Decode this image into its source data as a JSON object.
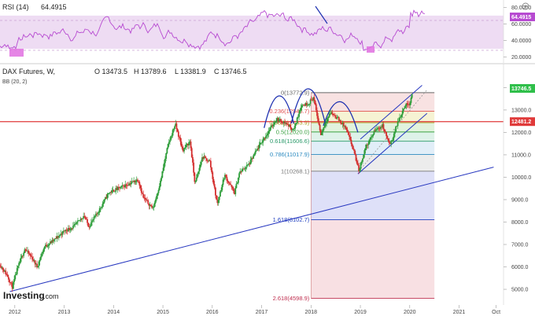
{
  "chart_data": [
    {
      "type": "line",
      "indicator": "RSI",
      "label": "RSI (14)",
      "value": "64.4915",
      "value_tag": "64.4915",
      "colors": {
        "line": "#b74ad1",
        "band": "#eedcf3",
        "tag": "#b74ad1"
      },
      "ylim": [
        15,
        85
      ],
      "y_ticks": [
        {
          "value": 80,
          "label": "80.0000"
        },
        {
          "value": 60,
          "label": "60.0000"
        },
        {
          "value": 40,
          "label": "40.0000"
        },
        {
          "value": 20,
          "label": "20.0000"
        }
      ],
      "overbought": 70,
      "oversold": 30
    },
    {
      "type": "candlestick",
      "instrument": "DAX Futures, W,",
      "ohlc_header": {
        "open": "O 13473.5",
        "high": "H 13789.6",
        "low": "L 13381.9",
        "close": "C 13746.5"
      },
      "indicator_caption": "BB (20, 2)",
      "brand": {
        "name": "Investing",
        "suffix": ".com"
      },
      "last_price_tag": "13746.5",
      "resistance_tag": "12481.2",
      "resistance_level": 12481.2,
      "ylim": [
        4300,
        14400
      ],
      "y_ticks": [
        {
          "value": 14000,
          "label": "14000.0"
        },
        {
          "value": 13000,
          "label": "13000.0"
        },
        {
          "value": 12000,
          "label": "12000.0"
        },
        {
          "value": 11000,
          "label": "11000.0"
        },
        {
          "value": 10000,
          "label": "10000.0"
        },
        {
          "value": 9000,
          "label": "9000.0"
        },
        {
          "value": 8000,
          "label": "8000.0"
        },
        {
          "value": 7000,
          "label": "7000.0"
        },
        {
          "value": 6000,
          "label": "6000.0"
        },
        {
          "value": 5000,
          "label": "5000.0"
        }
      ],
      "xlim": [
        2011.7,
        2021.9
      ],
      "x_ticks": [
        {
          "value": 2012,
          "label": "2012"
        },
        {
          "value": 2013,
          "label": "2013"
        },
        {
          "value": 2014,
          "label": "2014"
        },
        {
          "value": 2015,
          "label": "2015"
        },
        {
          "value": 2016,
          "label": "2016"
        },
        {
          "value": 2017,
          "label": "2017"
        },
        {
          "value": 2018,
          "label": "2018"
        },
        {
          "value": 2019,
          "label": "2019"
        },
        {
          "value": 2020,
          "label": "2020"
        },
        {
          "value": 2021,
          "label": "2021"
        },
        {
          "value": 2021.75,
          "label": "Oct"
        }
      ],
      "price_path": [
        [
          2011.7,
          6100
        ],
        [
          2011.85,
          5600
        ],
        [
          2011.95,
          5100
        ],
        [
          2012.05,
          5900
        ],
        [
          2012.2,
          6800
        ],
        [
          2012.35,
          6400
        ],
        [
          2012.45,
          6000
        ],
        [
          2012.6,
          6900
        ],
        [
          2012.8,
          7200
        ],
        [
          2013.0,
          7600
        ],
        [
          2013.2,
          7800
        ],
        [
          2013.4,
          8300
        ],
        [
          2013.5,
          7800
        ],
        [
          2013.7,
          8500
        ],
        [
          2013.9,
          9300
        ],
        [
          2014.1,
          9500
        ],
        [
          2014.3,
          9700
        ],
        [
          2014.5,
          9900
        ],
        [
          2014.6,
          9100
        ],
        [
          2014.8,
          8600
        ],
        [
          2014.95,
          9800
        ],
        [
          2015.1,
          11400
        ],
        [
          2015.25,
          12380
        ],
        [
          2015.4,
          11200
        ],
        [
          2015.55,
          11600
        ],
        [
          2015.65,
          9700
        ],
        [
          2015.8,
          10900
        ],
        [
          2015.95,
          10700
        ],
        [
          2016.1,
          8800
        ],
        [
          2016.25,
          10100
        ],
        [
          2016.45,
          9300
        ],
        [
          2016.55,
          10200
        ],
        [
          2016.75,
          10600
        ],
        [
          2016.95,
          11400
        ],
        [
          2017.1,
          11900
        ],
        [
          2017.3,
          12600
        ],
        [
          2017.5,
          12400
        ],
        [
          2017.65,
          12100
        ],
        [
          2017.8,
          13200
        ],
        [
          2017.95,
          13300
        ],
        [
          2018.05,
          13560
        ],
        [
          2018.2,
          11900
        ],
        [
          2018.3,
          12500
        ],
        [
          2018.4,
          12900
        ],
        [
          2018.55,
          12600
        ],
        [
          2018.7,
          12200
        ],
        [
          2018.85,
          11300
        ],
        [
          2018.97,
          10300
        ],
        [
          2019.1,
          11300
        ],
        [
          2019.3,
          12100
        ],
        [
          2019.45,
          12300
        ],
        [
          2019.6,
          11400
        ],
        [
          2019.75,
          12400
        ],
        [
          2019.9,
          13200
        ],
        [
          2020.0,
          13300
        ],
        [
          2020.05,
          13746
        ]
      ],
      "fibonacci": {
        "levels": [
          {
            "ratio": 0,
            "price": 13772.9,
            "label": "0(13772.9)",
            "color": "#666666"
          },
          {
            "ratio": 0.236,
            "price": 12945.7,
            "label": "0.236(12945.7)",
            "color": "#e05050"
          },
          {
            "ratio": 0.382,
            "price": 12433.9,
            "label": "0.382(12433.9)",
            "color": "#a8a020"
          },
          {
            "ratio": 0.5,
            "price": 12020.0,
            "label": "0.5(12020.0)",
            "color": "#3aa040"
          },
          {
            "ratio": 0.618,
            "price": 11606.6,
            "label": "0.618(11606.6)",
            "color": "#2b9a6a"
          },
          {
            "ratio": 0.786,
            "price": 11017.9,
            "label": "0.786(11017.9)",
            "color": "#2b8ac0"
          },
          {
            "ratio": 1,
            "price": 10268.1,
            "label": "1(10268.1)",
            "color": "#777777"
          },
          {
            "ratio": 1.618,
            "price": 8102.7,
            "label": "1.618(8102.7)",
            "color": "#2040c0"
          },
          {
            "ratio": 2.618,
            "price": 4598.9,
            "label": "2.618(4598.9)",
            "color": "#c03050"
          }
        ],
        "x_start": 2018.0,
        "x_end": 2020.5,
        "band_colors": [
          "#f6d8d8",
          "#f3efc4",
          "#d7efd1",
          "#d3eee2",
          "#d7e8f5",
          "#e6e6e6",
          "#d3d6f5",
          "#f6d6da"
        ]
      },
      "trendlines": {
        "long_term_support": {
          "from": [
            2011.9,
            4900
          ],
          "to": [
            2021.7,
            10450
          ],
          "color": "#2838c0"
        },
        "channel_upper": {
          "from": [
            2019.0,
            11700
          ],
          "to": [
            2020.25,
            14100
          ],
          "color": "#2838c0"
        },
        "channel_lower": {
          "from": [
            2018.95,
            10150
          ],
          "to": [
            2020.35,
            12850
          ],
          "color": "#2838c0"
        },
        "dotted_projection": {
          "from": [
            2018.97,
            10268
          ],
          "to": [
            2020.35,
            13900
          ],
          "color": "#999999"
        }
      },
      "head_and_shoulders": [
        {
          "from": [
            2017.05,
            12200
          ],
          "peak": [
            2017.35,
            13650
          ],
          "to": [
            2017.65,
            12400
          ]
        },
        {
          "from": [
            2017.6,
            12400
          ],
          "peak": [
            2017.95,
            14050
          ],
          "to": [
            2018.3,
            12300
          ]
        },
        {
          "from": [
            2018.25,
            12300
          ],
          "peak": [
            2018.6,
            13500
          ],
          "to": [
            2018.95,
            12000
          ]
        }
      ]
    }
  ]
}
